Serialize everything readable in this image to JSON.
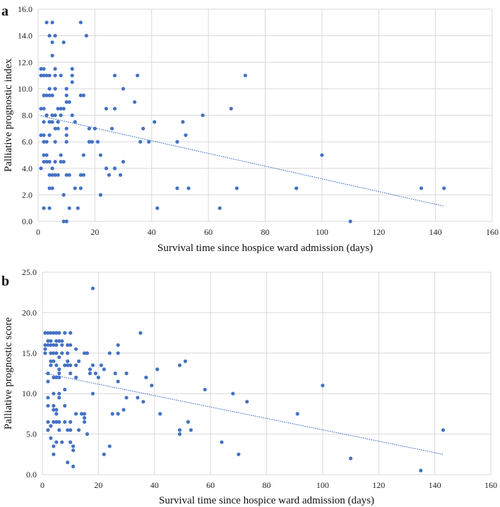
{
  "chart_data": [
    {
      "panel_label": "a",
      "type": "scatter",
      "xlabel": "Survival time since hospice ward admission (days)",
      "ylabel": "Palliative prognostic index",
      "xlim": [
        0,
        160
      ],
      "ylim": [
        0,
        16
      ],
      "xticks": [
        "0",
        "20",
        "40",
        "60",
        "80",
        "100",
        "120",
        "140",
        "160"
      ],
      "yticks": [
        "0.0",
        "2.0",
        "4.0",
        "6.0",
        "8.0",
        "10.0",
        "12.0",
        "14.0",
        "16.0"
      ],
      "grid": true,
      "color": "#4472C4",
      "trendline": {
        "type": "linear",
        "x": [
          1,
          143
        ],
        "y": [
          7.95,
          1.15
        ]
      },
      "points": [
        [
          3,
          15
        ],
        [
          5,
          15
        ],
        [
          15,
          15
        ],
        [
          4,
          14
        ],
        [
          6,
          14
        ],
        [
          17,
          14
        ],
        [
          5,
          13.5
        ],
        [
          9,
          13.5
        ],
        [
          5,
          12.5
        ],
        [
          1,
          11.5
        ],
        [
          2,
          11.5
        ],
        [
          6,
          11.5
        ],
        [
          12,
          11.5
        ],
        [
          1,
          11
        ],
        [
          2,
          11
        ],
        [
          3,
          11
        ],
        [
          4,
          11
        ],
        [
          6,
          11
        ],
        [
          8,
          11
        ],
        [
          12,
          11
        ],
        [
          27,
          11
        ],
        [
          35,
          11
        ],
        [
          73,
          11
        ],
        [
          12,
          10.5
        ],
        [
          4,
          10
        ],
        [
          6,
          10
        ],
        [
          10,
          10
        ],
        [
          30,
          10
        ],
        [
          2,
          9.5
        ],
        [
          3,
          9.5
        ],
        [
          4,
          9.5
        ],
        [
          5,
          9.5
        ],
        [
          10,
          9.5
        ],
        [
          15,
          9.5
        ],
        [
          16,
          9.5
        ],
        [
          10,
          9
        ],
        [
          11,
          9
        ],
        [
          34,
          9
        ],
        [
          1,
          8.5
        ],
        [
          2,
          8.5
        ],
        [
          7,
          8.5
        ],
        [
          8,
          8.5
        ],
        [
          9,
          8.5
        ],
        [
          24,
          8.5
        ],
        [
          27,
          8.5
        ],
        [
          68,
          8.5
        ],
        [
          3,
          8
        ],
        [
          5,
          8
        ],
        [
          6,
          8
        ],
        [
          8,
          8
        ],
        [
          12,
          8
        ],
        [
          58,
          8
        ],
        [
          2,
          7.5
        ],
        [
          4,
          7.5
        ],
        [
          5,
          7.5
        ],
        [
          7,
          7.5
        ],
        [
          13,
          7.5
        ],
        [
          41,
          7.5
        ],
        [
          51,
          7.5
        ],
        [
          6,
          7
        ],
        [
          7,
          7
        ],
        [
          10,
          7
        ],
        [
          18,
          7
        ],
        [
          20,
          7
        ],
        [
          26,
          7
        ],
        [
          37,
          7
        ],
        [
          1,
          6.5
        ],
        [
          2,
          6.5
        ],
        [
          4,
          6.5
        ],
        [
          10,
          6.5
        ],
        [
          52,
          6.5
        ],
        [
          2,
          6
        ],
        [
          3,
          6
        ],
        [
          6,
          6
        ],
        [
          10,
          6
        ],
        [
          18,
          6
        ],
        [
          19,
          6
        ],
        [
          21,
          6
        ],
        [
          36,
          6
        ],
        [
          39,
          6
        ],
        [
          49,
          6
        ],
        [
          2,
          5
        ],
        [
          3,
          5
        ],
        [
          8,
          5
        ],
        [
          16,
          5
        ],
        [
          22,
          5
        ],
        [
          100,
          5
        ],
        [
          2,
          4.5
        ],
        [
          3,
          4.5
        ],
        [
          4,
          4.5
        ],
        [
          6,
          4.5
        ],
        [
          8,
          4.5
        ],
        [
          9,
          4.5
        ],
        [
          30,
          4.5
        ],
        [
          1,
          4
        ],
        [
          5,
          4
        ],
        [
          24,
          4
        ],
        [
          27,
          4
        ],
        [
          4,
          3.5
        ],
        [
          5,
          3.5
        ],
        [
          6,
          3.5
        ],
        [
          7,
          3.5
        ],
        [
          10,
          3.5
        ],
        [
          11,
          3.5
        ],
        [
          15,
          3.5
        ],
        [
          16,
          3.5
        ],
        [
          25,
          3.5
        ],
        [
          29,
          3.5
        ],
        [
          4,
          2.5
        ],
        [
          5,
          2.5
        ],
        [
          13,
          2.5
        ],
        [
          15,
          2.5
        ],
        [
          49,
          2.5
        ],
        [
          53,
          2.5
        ],
        [
          70,
          2.5
        ],
        [
          91,
          2.5
        ],
        [
          135,
          2.5
        ],
        [
          143,
          2.5
        ],
        [
          9,
          2
        ],
        [
          22,
          2
        ],
        [
          2,
          1
        ],
        [
          4,
          1
        ],
        [
          11,
          1
        ],
        [
          14,
          1
        ],
        [
          42,
          1
        ],
        [
          64,
          1
        ],
        [
          9,
          0
        ],
        [
          10,
          0
        ],
        [
          110,
          0
        ]
      ]
    },
    {
      "panel_label": "b",
      "type": "scatter",
      "xlabel": "Survival time since hospice ward admission (days)",
      "ylabel": "Palliative prognostic score",
      "xlim": [
        0,
        160
      ],
      "ylim": [
        0,
        25
      ],
      "xticks": [
        "0",
        "20",
        "40",
        "60",
        "80",
        "100",
        "120",
        "140",
        "160"
      ],
      "yticks": [
        "0.0",
        "5.0",
        "10.0",
        "15.0",
        "20.0",
        "25.0"
      ],
      "grid": true,
      "color": "#4472C4",
      "trendline": {
        "type": "linear",
        "x": [
          1,
          143
        ],
        "y": [
          12.5,
          2.5
        ]
      },
      "points": [
        [
          18,
          23
        ],
        [
          1,
          17.5
        ],
        [
          2,
          17.5
        ],
        [
          3,
          17.5
        ],
        [
          4,
          17.5
        ],
        [
          5,
          17.5
        ],
        [
          6,
          17.5
        ],
        [
          8,
          17.5
        ],
        [
          10,
          17.5
        ],
        [
          35,
          17.5
        ],
        [
          2,
          16.5
        ],
        [
          3,
          16.5
        ],
        [
          5,
          16.5
        ],
        [
          6,
          16.5
        ],
        [
          7,
          16.5
        ],
        [
          1,
          16
        ],
        [
          2,
          16
        ],
        [
          3,
          16
        ],
        [
          4,
          16
        ],
        [
          5,
          16
        ],
        [
          7,
          16
        ],
        [
          9,
          16
        ],
        [
          10,
          16
        ],
        [
          27,
          16
        ],
        [
          1,
          15.5
        ],
        [
          12,
          15.5
        ],
        [
          1,
          15
        ],
        [
          3,
          15
        ],
        [
          4,
          15
        ],
        [
          5,
          15
        ],
        [
          7,
          15
        ],
        [
          9,
          15
        ],
        [
          15,
          15
        ],
        [
          16,
          15
        ],
        [
          24,
          15
        ],
        [
          27,
          15
        ],
        [
          6,
          14.5
        ],
        [
          3,
          14
        ],
        [
          4,
          14
        ],
        [
          9,
          14
        ],
        [
          13,
          14
        ],
        [
          51,
          14
        ],
        [
          3,
          13.5
        ],
        [
          5,
          13.5
        ],
        [
          8,
          13.5
        ],
        [
          9,
          13.5
        ],
        [
          10,
          13.5
        ],
        [
          12,
          13.5
        ],
        [
          18,
          13.5
        ],
        [
          21,
          13.5
        ],
        [
          49,
          13.5
        ],
        [
          6,
          13
        ],
        [
          17,
          13
        ],
        [
          22,
          13
        ],
        [
          41,
          13
        ],
        [
          2,
          12.5
        ],
        [
          6,
          12.5
        ],
        [
          10,
          12.5
        ],
        [
          17,
          12.5
        ],
        [
          19,
          12.5
        ],
        [
          26,
          12.5
        ],
        [
          30,
          12.5
        ],
        [
          4,
          12
        ],
        [
          5,
          12
        ],
        [
          6,
          12
        ],
        [
          12,
          12
        ],
        [
          20,
          12
        ],
        [
          37,
          12
        ],
        [
          2,
          11.5
        ],
        [
          27,
          11.5
        ],
        [
          39,
          11
        ],
        [
          100,
          11
        ],
        [
          8,
          10.5
        ],
        [
          58,
          10.5
        ],
        [
          4,
          10
        ],
        [
          6,
          10
        ],
        [
          18,
          10
        ],
        [
          68,
          10
        ],
        [
          2,
          9.5
        ],
        [
          6,
          9.5
        ],
        [
          30,
          9.5
        ],
        [
          34,
          9.5
        ],
        [
          36,
          9
        ],
        [
          73,
          9
        ],
        [
          2,
          8.5
        ],
        [
          4,
          8.5
        ],
        [
          8,
          8.5
        ],
        [
          4,
          8
        ],
        [
          5,
          8
        ],
        [
          29,
          8
        ],
        [
          5,
          7.5
        ],
        [
          12,
          7.5
        ],
        [
          14,
          7.5
        ],
        [
          15,
          7.5
        ],
        [
          25,
          7.5
        ],
        [
          27,
          7.5
        ],
        [
          42,
          7.5
        ],
        [
          91,
          7.5
        ],
        [
          15,
          7
        ],
        [
          2,
          6.5
        ],
        [
          4,
          6.5
        ],
        [
          5,
          6.5
        ],
        [
          6,
          6.5
        ],
        [
          8,
          6.5
        ],
        [
          10,
          6.5
        ],
        [
          15,
          6.5
        ],
        [
          52,
          6.5
        ],
        [
          3,
          6
        ],
        [
          2,
          5.5
        ],
        [
          6,
          5.5
        ],
        [
          9,
          5.5
        ],
        [
          10,
          5.5
        ],
        [
          13,
          5.5
        ],
        [
          49,
          5.5
        ],
        [
          53,
          5.5
        ],
        [
          143,
          5.5
        ],
        [
          16,
          5
        ],
        [
          49,
          5
        ],
        [
          3,
          4.5
        ],
        [
          5,
          4
        ],
        [
          7,
          4
        ],
        [
          10,
          4
        ],
        [
          64,
          4
        ],
        [
          4,
          3.5
        ],
        [
          11,
          3.5
        ],
        [
          24,
          3.5
        ],
        [
          11,
          3
        ],
        [
          4,
          2.5
        ],
        [
          22,
          2.5
        ],
        [
          70,
          2.5
        ],
        [
          110,
          2
        ],
        [
          9,
          1.5
        ],
        [
          11,
          1
        ],
        [
          135,
          0.5
        ]
      ]
    }
  ]
}
